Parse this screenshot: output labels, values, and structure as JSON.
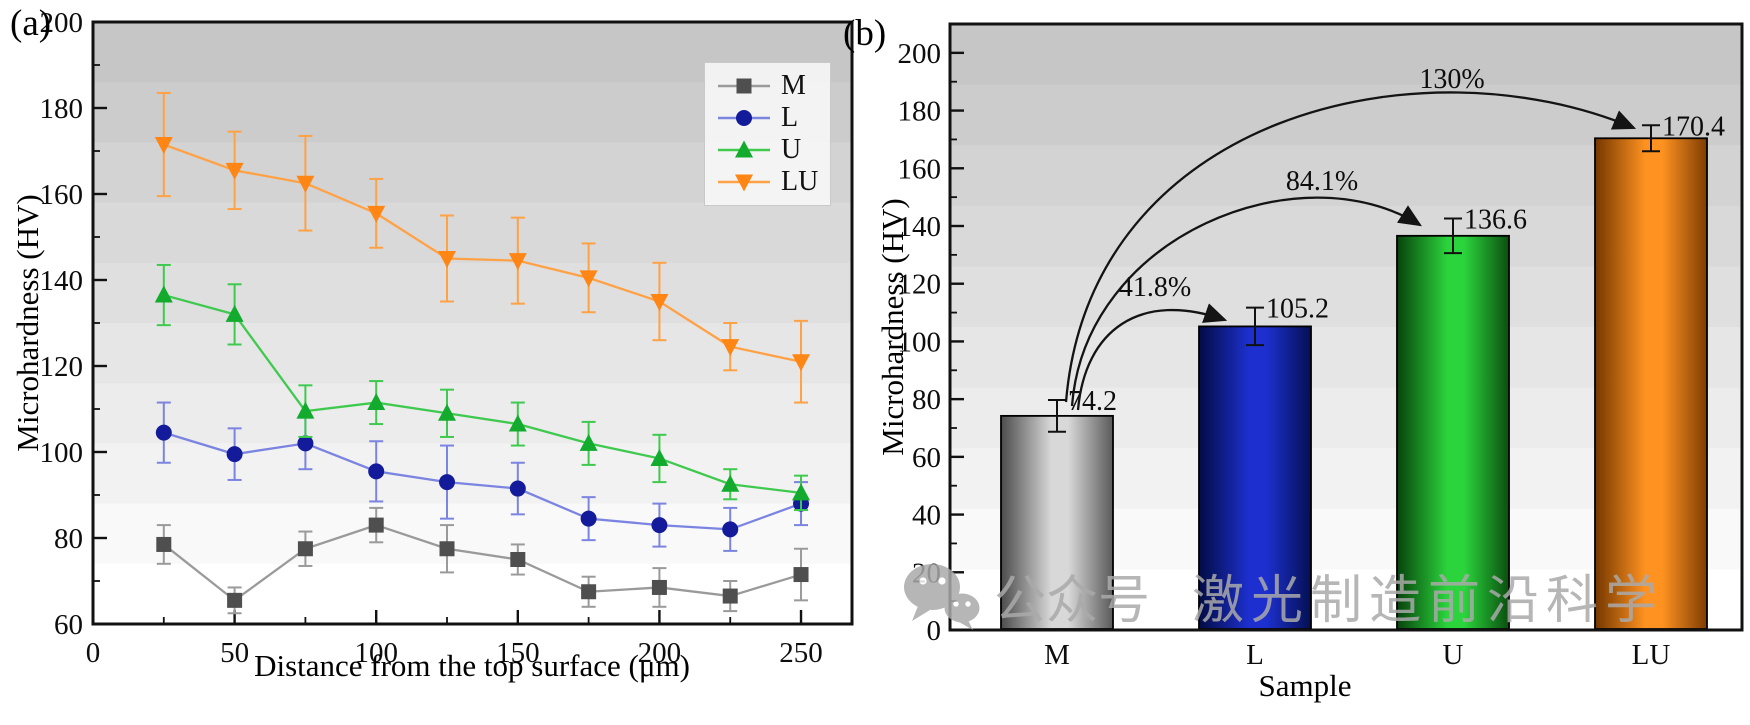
{
  "figure": {
    "panel_a_label": "(a)",
    "panel_b_label": "(b)",
    "watermark": {
      "icon": "wechat-icon",
      "text1": "公众号",
      "text2": "激光制造前沿科学",
      "color": "#aaaaaa"
    }
  },
  "chart_data": [
    {
      "id": "a",
      "type": "line",
      "title": "",
      "xlabel": "Distance from the top surface (μm)",
      "ylabel": "Microhardness (HV)",
      "xlim": [
        0,
        268
      ],
      "ylim": [
        60,
        200
      ],
      "xticks": [
        0,
        50,
        100,
        150,
        200,
        250
      ],
      "yticks": [
        60,
        80,
        100,
        120,
        140,
        160,
        180,
        200
      ],
      "grid": false,
      "background": "stepped gray gradient, dark top to white bottom",
      "legend_position": "top-right",
      "x": [
        25,
        50,
        75,
        100,
        125,
        150,
        175,
        200,
        225,
        250
      ],
      "series": [
        {
          "name": "M",
          "marker": "square",
          "marker_color": "#4f4f4f",
          "line_color": "#9a9a9a",
          "values": [
            78.5,
            65.5,
            77.5,
            83,
            77.5,
            75,
            67.5,
            68.5,
            66.5,
            71.5
          ],
          "errors": [
            4.5,
            3,
            4,
            4,
            5.5,
            3.5,
            3.5,
            4.5,
            3.5,
            6
          ]
        },
        {
          "name": "L",
          "marker": "circle",
          "marker_color": "#141b9b",
          "line_color": "#7b84e0",
          "values": [
            104.5,
            99.5,
            102,
            95.5,
            93,
            91.5,
            84.5,
            83,
            82,
            88
          ],
          "errors": [
            7,
            6,
            6,
            7,
            8.5,
            6,
            5,
            5,
            5,
            5
          ]
        },
        {
          "name": "U",
          "marker": "triangle-up",
          "marker_color": "#12ab2e",
          "line_color": "#3fc94f",
          "values": [
            136.5,
            132,
            109.5,
            111.5,
            109,
            106.5,
            102,
            98.5,
            92.5,
            90.5
          ],
          "errors": [
            7,
            7,
            6,
            5,
            5.5,
            5,
            5,
            5.5,
            3.5,
            4
          ]
        },
        {
          "name": "LU",
          "marker": "triangle-down",
          "marker_color": "#ff8514",
          "line_color": "#ffa145",
          "values": [
            171.5,
            165.5,
            162.5,
            155.5,
            145,
            144.5,
            140.5,
            135,
            124.5,
            121
          ],
          "errors": [
            12,
            9,
            11,
            8,
            10,
            10,
            8,
            9,
            5.5,
            9.5
          ]
        }
      ]
    },
    {
      "id": "b",
      "type": "bar",
      "title": "",
      "xlabel": "Sample",
      "ylabel": "Microhardness (HV)",
      "ylim": [
        0,
        210
      ],
      "yticks": [
        0,
        20,
        40,
        60,
        80,
        100,
        120,
        140,
        160,
        180,
        200
      ],
      "grid": false,
      "background": "stepped gray gradient, dark top to white bottom",
      "categories": [
        "M",
        "L",
        "U",
        "LU"
      ],
      "values": [
        74.2,
        105.2,
        136.6,
        170.4
      ],
      "errors": [
        5.5,
        6.5,
        6,
        4.5
      ],
      "value_labels": [
        "74.2",
        "105.2",
        "136.6",
        "170.4"
      ],
      "bar_colors": [
        {
          "edge": "#4c4c4c",
          "center": "#d8d8d8",
          "edge2": "#5a5a5a"
        },
        {
          "edge": "#020c45",
          "center": "#1d30cf",
          "edge2": "#041052"
        },
        {
          "edge": "#07430c",
          "center": "#2bd43c",
          "edge2": "#0a4f10"
        },
        {
          "edge": "#743700",
          "center": "#ff9220",
          "edge2": "#7e3d02"
        }
      ],
      "annotations": [
        {
          "label": "41.8%",
          "from": "M",
          "to": "L"
        },
        {
          "label": "84.1%",
          "from": "M",
          "to": "U"
        },
        {
          "label": "130%",
          "from": "M",
          "to": "LU"
        }
      ]
    }
  ]
}
